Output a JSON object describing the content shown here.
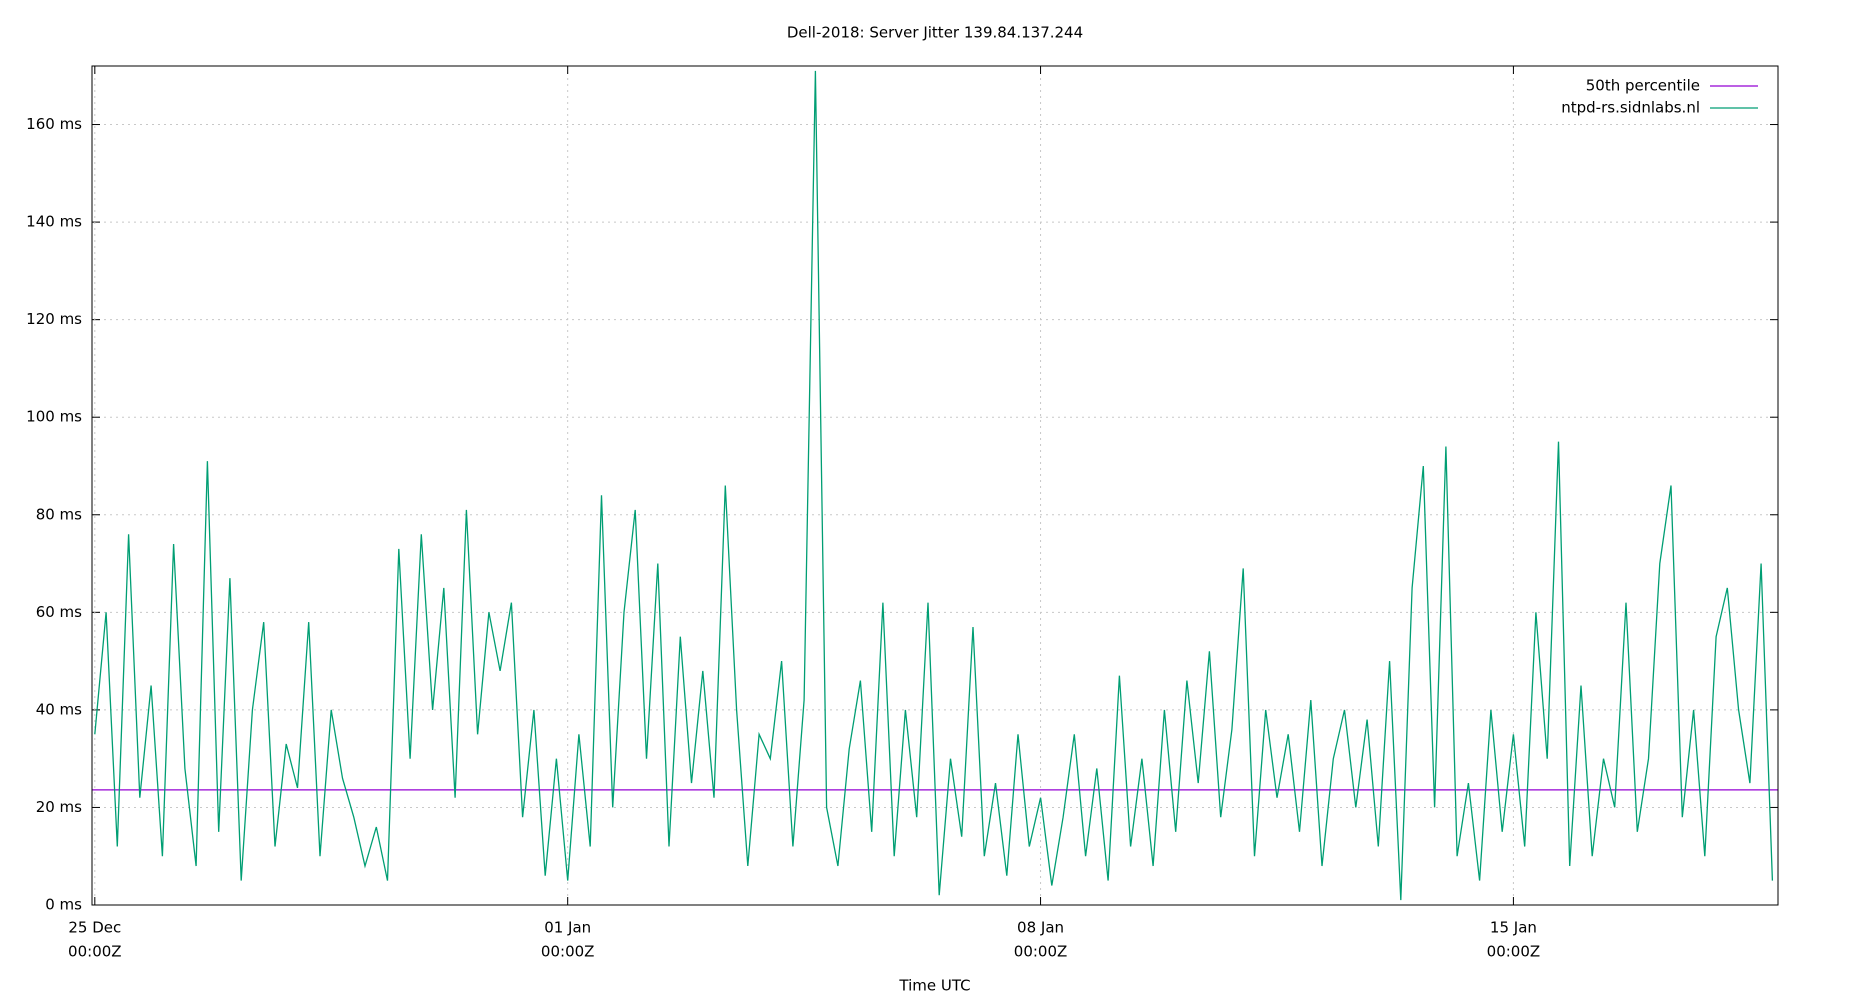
{
  "chart_data": {
    "type": "line",
    "title": "Dell-2018: Server Jitter 139.84.137.244",
    "x_label": "Time UTC",
    "x": [
      "25 Dec 00:00",
      "25 Dec 04:00",
      "25 Dec 08:00",
      "25 Dec 12:00",
      "25 Dec 16:00",
      "25 Dec 20:00",
      "26 Dec 00:00",
      "26 Dec 04:00",
      "26 Dec 08:00",
      "26 Dec 12:00",
      "26 Dec 16:00",
      "26 Dec 20:00",
      "27 Dec 00:00",
      "27 Dec 04:00",
      "27 Dec 08:00",
      "27 Dec 12:00",
      "27 Dec 16:00",
      "27 Dec 20:00",
      "28 Dec 00:00",
      "28 Dec 04:00",
      "28 Dec 08:00",
      "28 Dec 12:00",
      "28 Dec 16:00",
      "28 Dec 20:00",
      "29 Dec 00:00",
      "29 Dec 04:00",
      "29 Dec 08:00",
      "29 Dec 12:00",
      "29 Dec 16:00",
      "29 Dec 20:00",
      "30 Dec 00:00",
      "30 Dec 04:00",
      "30 Dec 08:00",
      "30 Dec 12:00",
      "30 Dec 16:00",
      "30 Dec 20:00",
      "31 Dec 00:00",
      "31 Dec 04:00",
      "31 Dec 08:00",
      "31 Dec 12:00",
      "31 Dec 16:00",
      "31 Dec 20:00",
      "01 Jan 00:00",
      "01 Jan 04:00",
      "01 Jan 08:00",
      "01 Jan 12:00",
      "01 Jan 16:00",
      "01 Jan 20:00",
      "02 Jan 00:00",
      "02 Jan 04:00",
      "02 Jan 08:00",
      "02 Jan 12:00",
      "02 Jan 16:00",
      "02 Jan 20:00",
      "03 Jan 00:00",
      "03 Jan 04:00",
      "03 Jan 08:00",
      "03 Jan 12:00",
      "03 Jan 16:00",
      "03 Jan 20:00",
      "04 Jan 00:00",
      "04 Jan 04:00",
      "04 Jan 08:00",
      "04 Jan 12:00",
      "04 Jan 16:00",
      "04 Jan 20:00",
      "05 Jan 00:00",
      "05 Jan 04:00",
      "05 Jan 08:00",
      "05 Jan 12:00",
      "05 Jan 16:00",
      "05 Jan 20:00",
      "06 Jan 00:00",
      "06 Jan 04:00",
      "06 Jan 08:00",
      "06 Jan 12:00",
      "06 Jan 16:00",
      "06 Jan 20:00",
      "07 Jan 00:00",
      "07 Jan 04:00",
      "07 Jan 08:00",
      "07 Jan 12:00",
      "07 Jan 16:00",
      "07 Jan 20:00",
      "08 Jan 00:00",
      "08 Jan 04:00",
      "08 Jan 08:00",
      "08 Jan 12:00",
      "08 Jan 16:00",
      "08 Jan 20:00",
      "09 Jan 00:00",
      "09 Jan 04:00",
      "09 Jan 08:00",
      "09 Jan 12:00",
      "09 Jan 16:00",
      "09 Jan 20:00",
      "10 Jan 00:00",
      "10 Jan 04:00",
      "10 Jan 08:00",
      "10 Jan 12:00",
      "10 Jan 16:00",
      "10 Jan 20:00",
      "11 Jan 00:00",
      "11 Jan 04:00",
      "11 Jan 08:00",
      "11 Jan 12:00",
      "11 Jan 16:00",
      "11 Jan 20:00",
      "12 Jan 00:00",
      "12 Jan 04:00",
      "12 Jan 08:00",
      "12 Jan 12:00",
      "12 Jan 16:00",
      "12 Jan 20:00",
      "13 Jan 00:00",
      "13 Jan 04:00",
      "13 Jan 08:00",
      "13 Jan 12:00",
      "13 Jan 16:00",
      "13 Jan 20:00",
      "14 Jan 00:00",
      "14 Jan 04:00",
      "14 Jan 08:00",
      "14 Jan 12:00",
      "14 Jan 16:00",
      "14 Jan 20:00",
      "15 Jan 00:00",
      "15 Jan 04:00",
      "15 Jan 08:00",
      "15 Jan 12:00",
      "15 Jan 16:00",
      "15 Jan 20:00",
      "16 Jan 00:00",
      "16 Jan 04:00",
      "16 Jan 08:00",
      "16 Jan 12:00",
      "16 Jan 16:00",
      "16 Jan 20:00",
      "17 Jan 00:00",
      "17 Jan 04:00",
      "17 Jan 08:00",
      "17 Jan 12:00",
      "17 Jan 16:00",
      "17 Jan 20:00",
      "18 Jan 00:00",
      "18 Jan 04:00",
      "18 Jan 08:00",
      "18 Jan 12:00",
      "18 Jan 16:00",
      "18 Jan 20:00"
    ],
    "series": [
      {
        "name": "50th percentile",
        "color": "#9400d3",
        "x": [
          "24 Dec 23:00",
          "18 Jan 22:00"
        ],
        "values": [
          23.6,
          23.6
        ]
      },
      {
        "name": "ntpd-rs.sidnlabs.nl",
        "color": "#009e73",
        "values": [
          35,
          60,
          12,
          76,
          22,
          45,
          10,
          74,
          28,
          8,
          91,
          15,
          67,
          5,
          40,
          58,
          12,
          33,
          24,
          58,
          10,
          40,
          26,
          18,
          8,
          16,
          5,
          73,
          30,
          76,
          40,
          65,
          22,
          81,
          35,
          60,
          48,
          62,
          18,
          40,
          6,
          30,
          5,
          35,
          12,
          84,
          20,
          60,
          81,
          30,
          70,
          12,
          55,
          25,
          48,
          22,
          86,
          40,
          8,
          35,
          30,
          50,
          12,
          42,
          171,
          20,
          8,
          32,
          46,
          15,
          62,
          10,
          40,
          18,
          62,
          2,
          30,
          14,
          57,
          10,
          25,
          6,
          35,
          12,
          22,
          4,
          18,
          35,
          10,
          28,
          5,
          47,
          12,
          30,
          8,
          40,
          15,
          46,
          25,
          52,
          18,
          36,
          69,
          10,
          40,
          22,
          35,
          15,
          42,
          8,
          30,
          40,
          20,
          38,
          12,
          50,
          1,
          65,
          90,
          20,
          94,
          10,
          25,
          5,
          40,
          15,
          35,
          12,
          60,
          30,
          95,
          8,
          45,
          10,
          30,
          20,
          62,
          15,
          30,
          70,
          86,
          18,
          40,
          10,
          55,
          65,
          40,
          25,
          70,
          5
        ]
      }
    ],
    "xlim": [
      "24 Dec 23:00",
      "18 Jan 22:00"
    ],
    "xticks": [
      {
        "value": "25 Dec 00:00",
        "label": [
          "25 Dec",
          "00:00Z"
        ]
      },
      {
        "value": "01 Jan 00:00",
        "label": [
          "01 Jan",
          "00:00Z"
        ]
      },
      {
        "value": "08 Jan 00:00",
        "label": [
          "08 Jan",
          "00:00Z"
        ]
      },
      {
        "value": "15 Jan 00:00",
        "label": [
          "15 Jan",
          "00:00Z"
        ]
      }
    ],
    "ylim": [
      0,
      172
    ],
    "yticks": [
      {
        "value": 0,
        "label": "0 ms"
      },
      {
        "value": 20,
        "label": "20 ms"
      },
      {
        "value": 40,
        "label": "40 ms"
      },
      {
        "value": 60,
        "label": "60 ms"
      },
      {
        "value": 80,
        "label": "80 ms"
      },
      {
        "value": 100,
        "label": "100 ms"
      },
      {
        "value": 120,
        "label": "120 ms"
      },
      {
        "value": 140,
        "label": "140 ms"
      },
      {
        "value": 160,
        "label": "160 ms"
      }
    ],
    "grid": true,
    "legend": "top-right"
  }
}
